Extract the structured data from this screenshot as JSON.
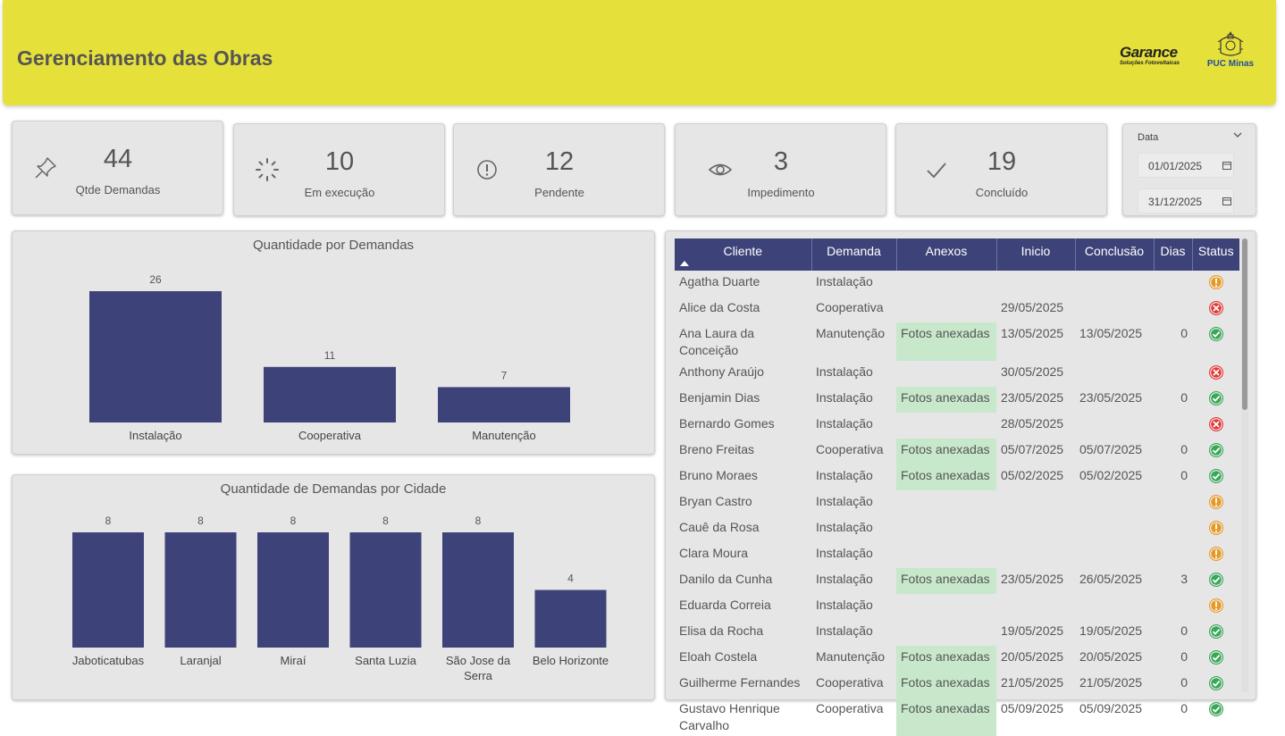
{
  "header": {
    "title": "Gerenciamento das Obras",
    "logo_garance_main": "Garance",
    "logo_garance_sub": "Soluções Fotovoltaicas",
    "logo_puc": "PUC Minas",
    "color": "#e6e03a"
  },
  "kpis": [
    {
      "value": "44",
      "label": "Qtde Demandas",
      "icon": "pin-icon"
    },
    {
      "value": "10",
      "label": "Em execução",
      "icon": "spinner-icon"
    },
    {
      "value": "12",
      "label": "Pendente",
      "icon": "alert-circle-icon"
    },
    {
      "value": "3",
      "label": "Impedimento",
      "icon": "eye-icon"
    },
    {
      "value": "19",
      "label": "Concluído",
      "icon": "check-icon"
    }
  ],
  "date_filter": {
    "label": "Data",
    "start": "01/01/2025",
    "end": "31/12/2025"
  },
  "chart_data": [
    {
      "type": "bar",
      "title": "Quantidade por Demandas",
      "categories": [
        "Instalação",
        "Cooperativa",
        "Manutenção"
      ],
      "values": [
        26,
        11,
        7
      ],
      "ylim": [
        0,
        26
      ],
      "color": "#3d4378",
      "grid": false
    },
    {
      "type": "bar",
      "title": "Quantidade de Demandas por Cidade",
      "categories": [
        "Jaboticatubas",
        "Laranjal",
        "Miraí",
        "Santa Luzia",
        "São Jose da Serra",
        "Belo Horizonte"
      ],
      "values": [
        8,
        8,
        8,
        8,
        8,
        4
      ],
      "ylim": [
        0,
        8
      ],
      "color": "#3d4378",
      "grid": false
    }
  ],
  "table": {
    "columns": [
      "Cliente",
      "Demanda",
      "Anexos",
      "Inicio",
      "Conclusão",
      "Dias",
      "Status"
    ],
    "sort_column": "Cliente",
    "rows": [
      {
        "cliente": "Agatha Duarte",
        "demanda": "Instalação",
        "anexos": "",
        "inicio": "",
        "conclusao": "",
        "dias": "",
        "status": "pending"
      },
      {
        "cliente": "Alice da Costa",
        "demanda": "Cooperativa",
        "anexos": "",
        "inicio": "29/05/2025",
        "conclusao": "",
        "dias": "",
        "status": "blocked"
      },
      {
        "cliente": "Ana Laura da Conceição",
        "demanda": "Manutenção",
        "anexos": "Fotos anexadas",
        "inicio": "13/05/2025",
        "conclusao": "13/05/2025",
        "dias": "0",
        "status": "done"
      },
      {
        "cliente": "Anthony Araújo",
        "demanda": "Instalação",
        "anexos": "",
        "inicio": "30/05/2025",
        "conclusao": "",
        "dias": "",
        "status": "blocked"
      },
      {
        "cliente": "Benjamin Dias",
        "demanda": "Instalação",
        "anexos": "Fotos anexadas",
        "inicio": "23/05/2025",
        "conclusao": "23/05/2025",
        "dias": "0",
        "status": "done"
      },
      {
        "cliente": "Bernardo Gomes",
        "demanda": "Instalação",
        "anexos": "",
        "inicio": "28/05/2025",
        "conclusao": "",
        "dias": "",
        "status": "blocked"
      },
      {
        "cliente": "Breno Freitas",
        "demanda": "Cooperativa",
        "anexos": "Fotos anexadas",
        "inicio": "05/07/2025",
        "conclusao": "05/07/2025",
        "dias": "0",
        "status": "done"
      },
      {
        "cliente": "Bruno Moraes",
        "demanda": "Instalação",
        "anexos": "Fotos anexadas",
        "inicio": "05/02/2025",
        "conclusao": "05/02/2025",
        "dias": "0",
        "status": "done"
      },
      {
        "cliente": "Bryan Castro",
        "demanda": "Instalação",
        "anexos": "",
        "inicio": "",
        "conclusao": "",
        "dias": "",
        "status": "pending"
      },
      {
        "cliente": "Cauê da Rosa",
        "demanda": "Instalação",
        "anexos": "",
        "inicio": "",
        "conclusao": "",
        "dias": "",
        "status": "pending"
      },
      {
        "cliente": "Clara Moura",
        "demanda": "Instalação",
        "anexos": "",
        "inicio": "",
        "conclusao": "",
        "dias": "",
        "status": "pending"
      },
      {
        "cliente": "Danilo da Cunha",
        "demanda": "Instalação",
        "anexos": "Fotos anexadas",
        "inicio": "23/05/2025",
        "conclusao": "26/05/2025",
        "dias": "3",
        "status": "done"
      },
      {
        "cliente": "Eduarda Correia",
        "demanda": "Instalação",
        "anexos": "",
        "inicio": "",
        "conclusao": "",
        "dias": "",
        "status": "pending"
      },
      {
        "cliente": "Elisa da Rocha",
        "demanda": "Instalação",
        "anexos": "",
        "inicio": "19/05/2025",
        "conclusao": "19/05/2025",
        "dias": "0",
        "status": "done"
      },
      {
        "cliente": "Eloah Costela",
        "demanda": "Manutenção",
        "anexos": "Fotos anexadas",
        "inicio": "20/05/2025",
        "conclusao": "20/05/2025",
        "dias": "0",
        "status": "done"
      },
      {
        "cliente": "Guilherme Fernandes",
        "demanda": "Cooperativa",
        "anexos": "Fotos anexadas",
        "inicio": "21/05/2025",
        "conclusao": "21/05/2025",
        "dias": "0",
        "status": "done"
      },
      {
        "cliente": "Gustavo Henrique Carvalho",
        "demanda": "Cooperativa",
        "anexos": "Fotos anexadas",
        "inicio": "05/09/2025",
        "conclusao": "05/09/2025",
        "dias": "0",
        "status": "done"
      }
    ]
  },
  "status_colors": {
    "pending": "#e39a2a",
    "blocked": "#e03b3b",
    "done": "#3aa659"
  }
}
